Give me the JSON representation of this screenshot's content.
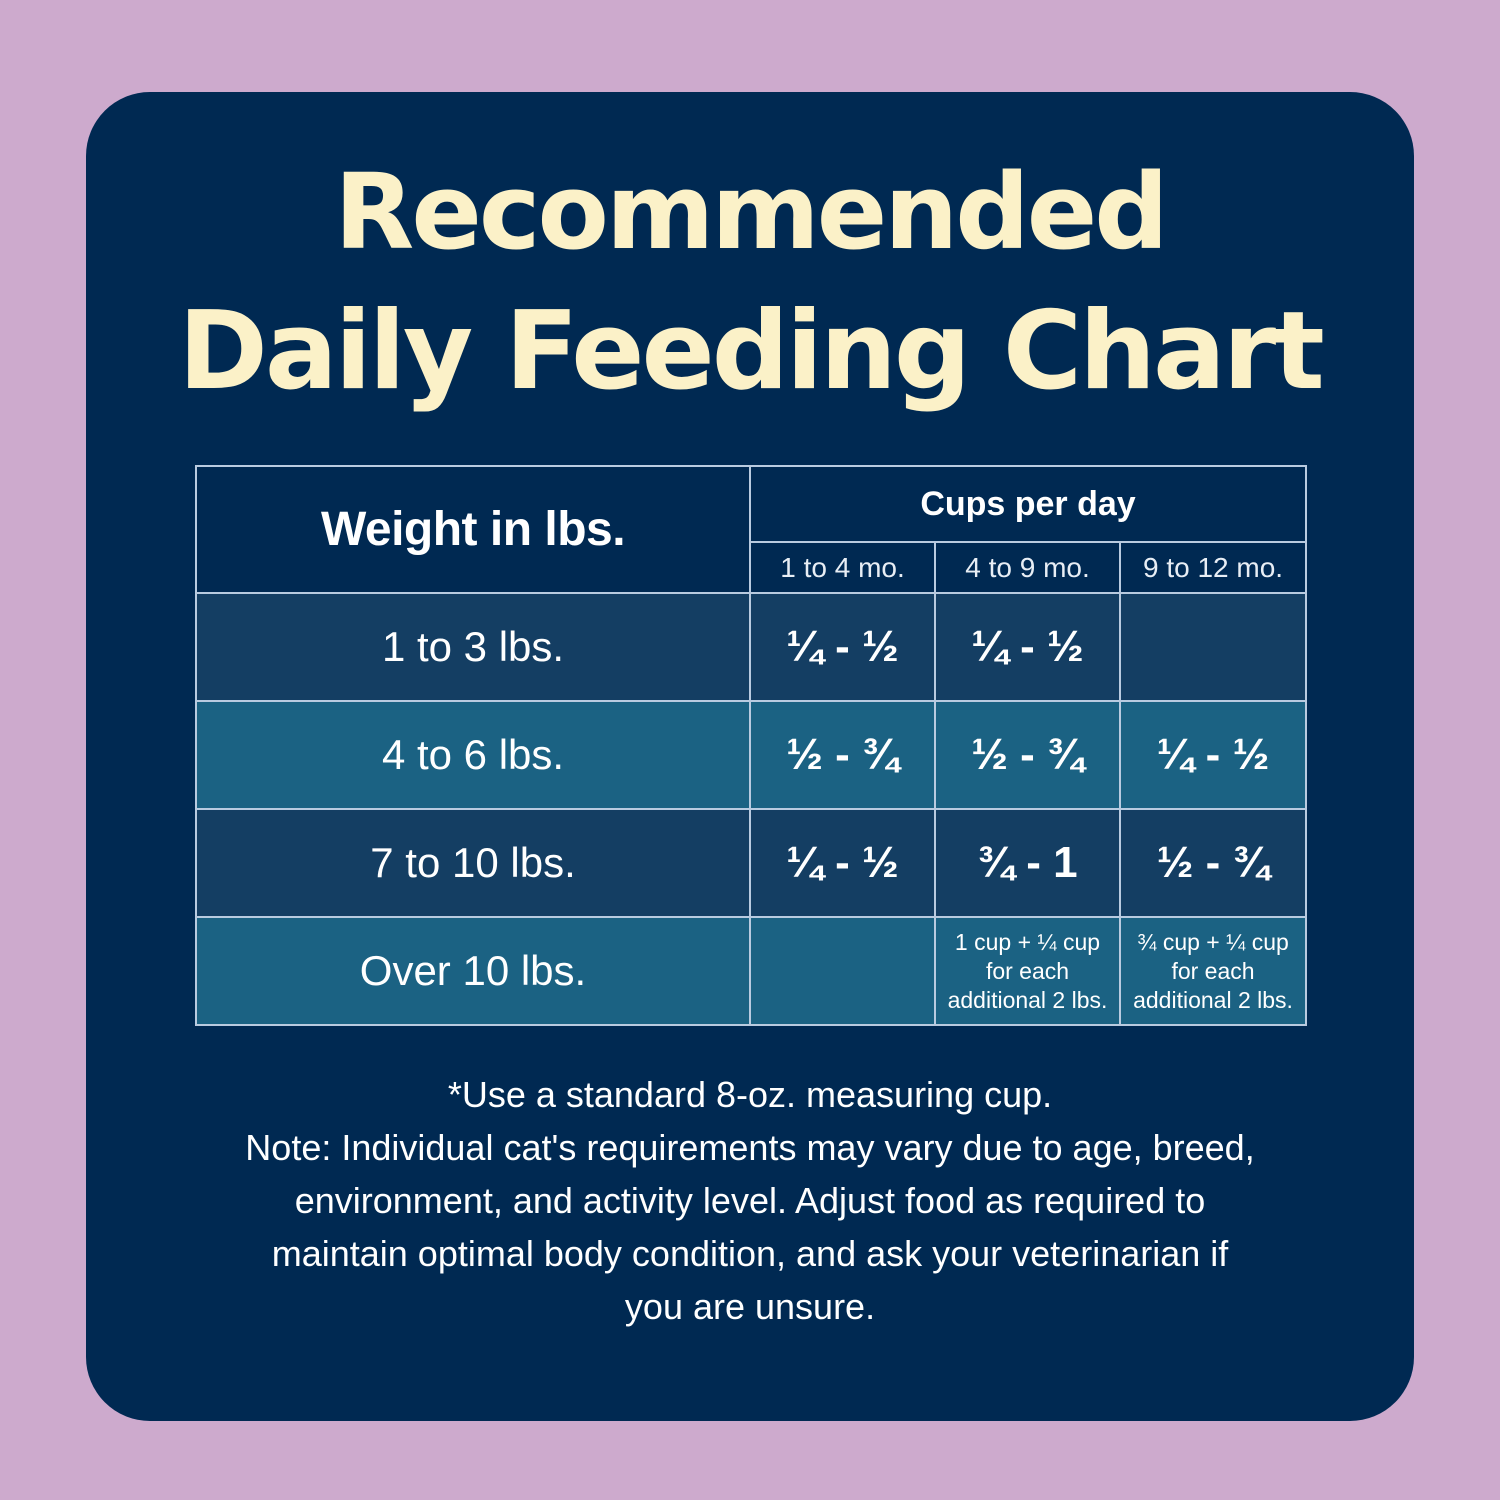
{
  "title": {
    "line1": "Recommended",
    "line2": "Daily Feeding Chart"
  },
  "table": {
    "weight_header": "Weight in lbs.",
    "cups_header": "Cups per day",
    "age_headers": [
      "1 to 4 mo.",
      "4 to 9 mo.",
      "9 to 12 mo."
    ],
    "rows": [
      {
        "weight": "1 to 3 lbs.",
        "c1": "¼ - ½",
        "c2": "¼ - ½",
        "c3": ""
      },
      {
        "weight": "4 to 6 lbs.",
        "c1": "½ - ¾",
        "c2": "½ - ¾",
        "c3": "¼ - ½"
      },
      {
        "weight": "7 to 10 lbs.",
        "c1": "¼ - ½",
        "c2": "¾ - 1",
        "c3": "½ - ¾"
      },
      {
        "weight": "Over 10 lbs.",
        "c1": "",
        "c2": [
          "1 cup + ¼ cup",
          "for each",
          "additional 2 lbs."
        ],
        "c3": [
          "¾ cup + ¼ cup",
          "for each",
          "additional 2 lbs."
        ]
      }
    ]
  },
  "notes": {
    "line1": "*Use a standard 8-oz. measuring cup.",
    "line2": "Note: Individual cat's requirements may vary due to age, breed,",
    "line3": "environment, and activity level. Adjust food as required to",
    "line4": "maintain optimal body condition, and ask your veterinarian if",
    "line5": "you are unsure."
  },
  "colors": {
    "page_background": "#cdaacd",
    "card_background": "#002952",
    "title_color": "#fbf1c8",
    "row_dark": "#143e63",
    "row_light": "#1b6283",
    "border": "#b9cbe0"
  }
}
